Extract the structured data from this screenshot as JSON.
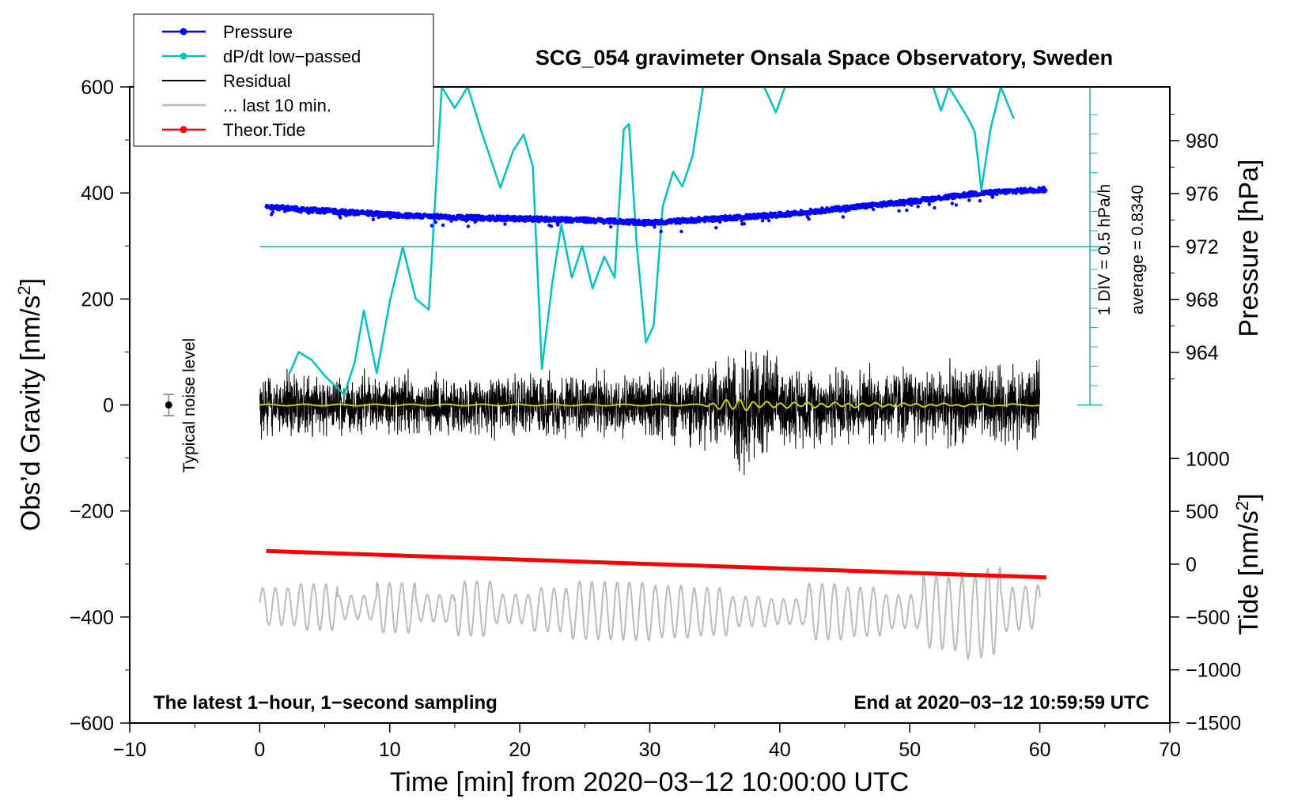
{
  "chart_data": {
    "type": "line",
    "title": "SCG_054 gravimeter Onsala Space Observatory, Sweden",
    "xlabel": "Time [min] from 2020−03−12 10:00:00 UTC",
    "xlim": [
      -10,
      70
    ],
    "x_ticks": [
      "−10",
      "0",
      "10",
      "20",
      "30",
      "40",
      "50",
      "60",
      "70"
    ],
    "left_axis": {
      "label_main": "Obs’d Gravity [nm/s",
      "label_sup": "2",
      "label_end": "]",
      "ylim": [
        -600,
        600
      ],
      "ticks": [
        "600",
        "400",
        "200",
        "0",
        "−200",
        "−400",
        "−600"
      ]
    },
    "pressure_axis": {
      "label": "Pressure [hPa]",
      "ticks": [
        "980",
        "976",
        "972",
        "968",
        "964"
      ],
      "tick_values": [
        980,
        976,
        972,
        968,
        964
      ]
    },
    "tide_axis": {
      "label_main": "Tide [nm/s",
      "label_sup": "2",
      "label_end": "]",
      "ticks": [
        "1000",
        "500",
        "0",
        "−500",
        "−1000",
        "−1500"
      ],
      "tick_values": [
        1000,
        500,
        0,
        -500,
        -1000,
        -1500
      ]
    },
    "dpdt_scale": {
      "div_label": "1 DIV = 0.5 hPa/h",
      "avg_label": "average = 0.8340"
    },
    "legend": [
      {
        "name": "Pressure",
        "color": "#0000ff",
        "marker": true
      },
      {
        "name": "dP/dt low−passed",
        "color": "#00c0c0",
        "marker": true
      },
      {
        "name": "Residual",
        "color": "#000000",
        "marker": false
      },
      {
        "name": "... last 10 min.",
        "color": "#bbbbbb",
        "marker": false
      },
      {
        "name": "Theor.Tide",
        "color": "#ff0000",
        "marker": true
      }
    ],
    "noise": {
      "label": "Typical noise level",
      "x": -7,
      "y": 0,
      "err": 20
    },
    "annotations": {
      "left": "The latest 1−hour, 1−second sampling",
      "right": "End at 2020−03−12 10:59:59 UTC"
    },
    "series": [
      {
        "name": "Pressure",
        "unit": "hPa",
        "color": "#0000ff",
        "x": [
          0.5,
          5,
          10,
          15,
          20,
          25,
          30,
          35,
          40,
          45,
          50,
          55,
          60
        ],
        "values": [
          975.0,
          974.7,
          974.4,
          974.2,
          974.1,
          974.0,
          973.8,
          974.1,
          974.4,
          974.9,
          975.4,
          976.0,
          976.3
        ]
      },
      {
        "name": "dP/dt low−passed",
        "unit": "nm/s2 plot units",
        "color": "#00c0c0",
        "x": [
          2.3,
          3,
          4,
          5,
          6.5,
          7.3,
          8,
          9,
          10,
          11,
          12,
          13,
          14,
          15,
          16,
          17,
          18.5,
          19.5,
          20.3,
          21,
          21.7,
          22.5,
          23.2,
          24,
          24.8,
          25.6,
          26.5,
          27.3,
          28,
          28.4,
          29,
          29.7,
          30.3,
          31,
          31.8,
          32.5,
          33.3,
          34.1,
          38.8,
          39.7,
          40.4,
          51.8,
          52.4,
          53,
          54.5,
          55,
          55.5,
          56.2,
          57,
          58
        ],
        "values": [
          60,
          100,
          85,
          55,
          20,
          80,
          178,
          60,
          195,
          298,
          200,
          180,
          600,
          560,
          600,
          520,
          410,
          480,
          510,
          450,
          68,
          230,
          340,
          240,
          300,
          220,
          280,
          240,
          520,
          530,
          300,
          118,
          150,
          375,
          440,
          412,
          470,
          600,
          600,
          552,
          600,
          600,
          555,
          600,
          540,
          515,
          405,
          520,
          600,
          540
        ]
      },
      {
        "name": "Residual",
        "unit": "nm/s2",
        "color": "#000000",
        "x": [
          0,
          30,
          34,
          36,
          38,
          40,
          55,
          60
        ],
        "amplitude": [
          70,
          75,
          90,
          120,
          160,
          90,
          90,
          90
        ]
      },
      {
        "name": "... last 10 min.",
        "unit": "nm/s2",
        "color": "#bbbbbb",
        "x": [
          0,
          20,
          30,
          45,
          52,
          55,
          56,
          60
        ],
        "center": [
          -380,
          -385,
          -390,
          -390,
          -390,
          -400,
          -390,
          -380
        ],
        "amplitude": [
          40,
          55,
          50,
          60,
          70,
          120,
          80,
          40
        ]
      },
      {
        "name": "Theor.Tide",
        "unit": "nm/s2",
        "color": "#ff0000",
        "x": [
          0.5,
          60.5
        ],
        "values": [
          125,
          -125
        ]
      },
      {
        "name": "residual smoothed",
        "unit": "nm/s2",
        "color": "#d0d000",
        "x": [
          0,
          34,
          35.5,
          37,
          38.5,
          60
        ],
        "values": [
          0,
          0,
          8,
          10,
          5,
          0
        ]
      }
    ]
  }
}
